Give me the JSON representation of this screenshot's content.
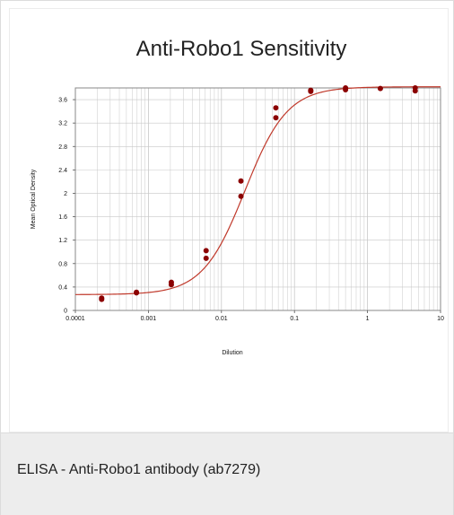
{
  "chart_data": {
    "type": "scatter",
    "title": "Anti-Robo1 Sensitivity",
    "xlabel": "Dilution",
    "ylabel": "Mean Optical Density",
    "x_scale": "log",
    "xlim": [
      0.0001,
      10
    ],
    "ylim": [
      0,
      3.8
    ],
    "x_ticks": [
      "0.0001",
      "0.001",
      "0.01",
      "0.1",
      "1",
      "10"
    ],
    "y_ticks": [
      "0",
      "0.4",
      "0.8",
      "1.2",
      "1.6",
      "2",
      "2.4",
      "2.8",
      "3.2",
      "3.6"
    ],
    "grid": true,
    "series": [
      {
        "points": [
          {
            "x": 0.000229,
            "y": 0.21
          },
          {
            "x": 0.000229,
            "y": 0.19
          },
          {
            "x": 0.000686,
            "y": 0.3
          },
          {
            "x": 0.000686,
            "y": 0.31
          },
          {
            "x": 0.00206,
            "y": 0.44
          },
          {
            "x": 0.00206,
            "y": 0.48
          },
          {
            "x": 0.00617,
            "y": 0.89
          },
          {
            "x": 0.00617,
            "y": 1.02
          },
          {
            "x": 0.0185,
            "y": 1.95
          },
          {
            "x": 0.0185,
            "y": 2.21
          },
          {
            "x": 0.0556,
            "y": 3.29
          },
          {
            "x": 0.0556,
            "y": 3.46
          },
          {
            "x": 0.167,
            "y": 3.76
          },
          {
            "x": 0.167,
            "y": 3.74
          },
          {
            "x": 0.5,
            "y": 3.8
          },
          {
            "x": 0.5,
            "y": 3.77
          },
          {
            "x": 1.5,
            "y": 3.79
          },
          {
            "x": 4.5,
            "y": 3.8
          },
          {
            "x": 4.5,
            "y": 3.75
          }
        ]
      }
    ],
    "fit_curve": {
      "bottom": 0.27,
      "top": 3.82,
      "ec50": 0.021,
      "hill": 1.5
    },
    "colors": {
      "points": "#8b0000",
      "curve": "#c0392b",
      "grid": "#c8c8c8",
      "frame": "#888888"
    }
  },
  "caption": {
    "text": "ELISA - Anti-Robo1 antibody (ab7279)"
  }
}
